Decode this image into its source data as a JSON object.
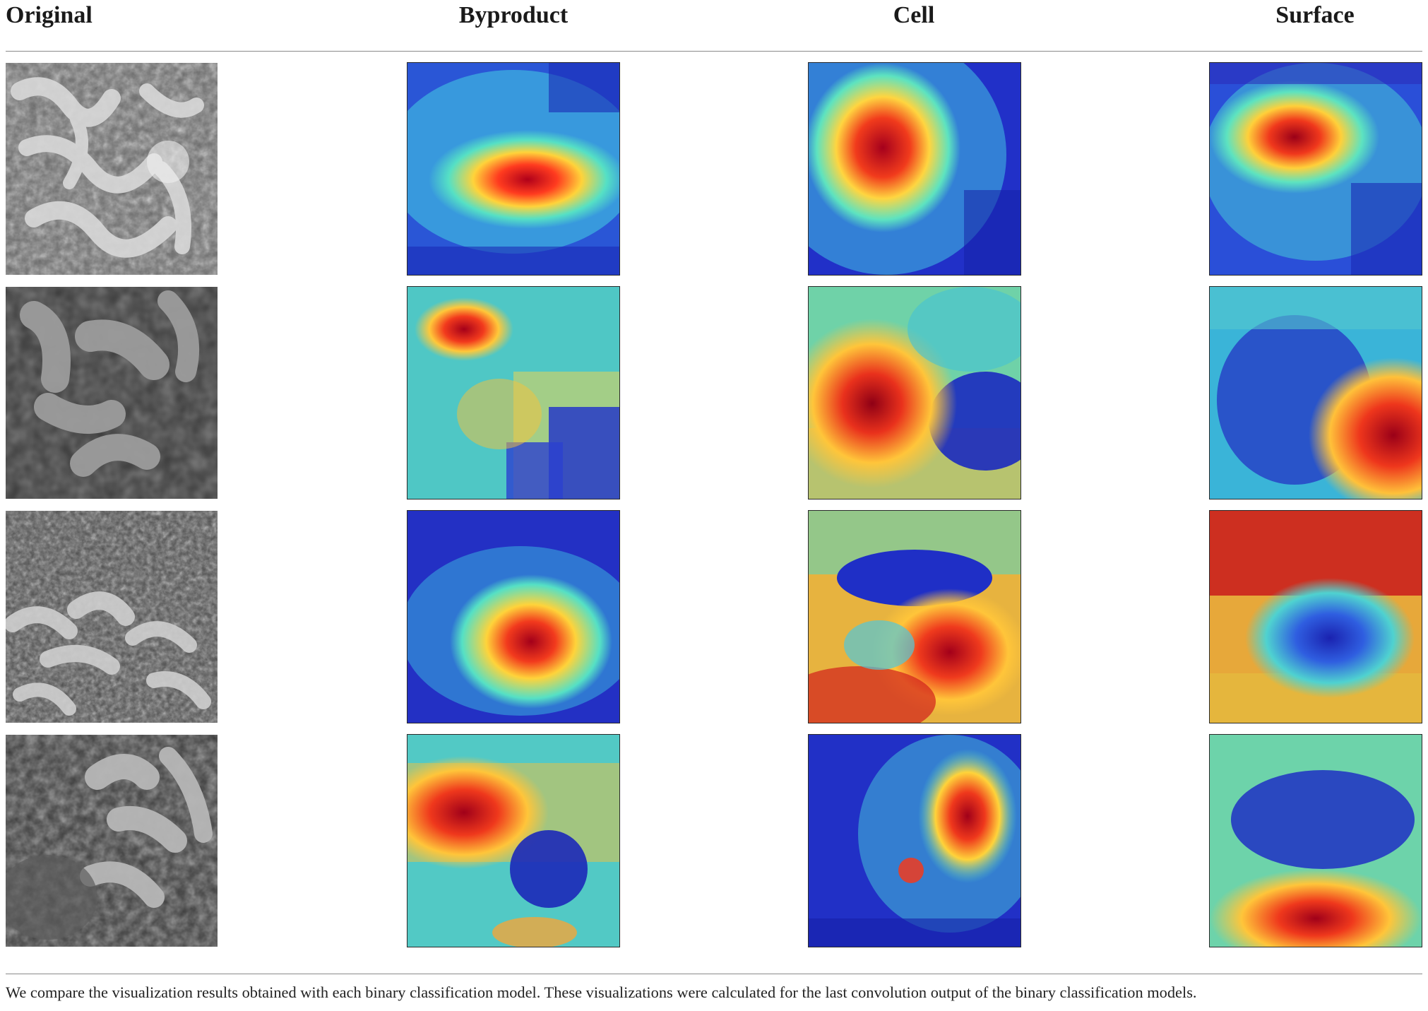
{
  "columns": {
    "original": "Original",
    "byproduct": "Byproduct",
    "cell": "Cell",
    "surface": "Surface"
  },
  "caption": "We compare the visualization results obtained with each binary classification model. These visualizations were calculated for the last convolution output of the binary classification models.",
  "colors": {
    "heat_low": "#1f2ac8",
    "heat_mid": "#3fd2d0",
    "heat_high": "#d7191c",
    "gray_dark": "#2b2b2b",
    "gray_light": "#d8d8d8"
  },
  "rows": [
    {
      "original": "sem-image-row-1",
      "byproduct": "heatmap-row-1-byproduct",
      "cell": "heatmap-row-1-cell",
      "surface": "heatmap-row-1-surface"
    },
    {
      "original": "sem-image-row-2",
      "byproduct": "heatmap-row-2-byproduct",
      "cell": "heatmap-row-2-cell",
      "surface": "heatmap-row-2-surface"
    },
    {
      "original": "sem-image-row-3",
      "byproduct": "heatmap-row-3-byproduct",
      "cell": "heatmap-row-3-cell",
      "surface": "heatmap-row-3-surface"
    },
    {
      "original": "sem-image-row-4",
      "byproduct": "heatmap-row-4-byproduct",
      "cell": "heatmap-row-4-cell",
      "surface": "heatmap-row-4-surface"
    }
  ]
}
